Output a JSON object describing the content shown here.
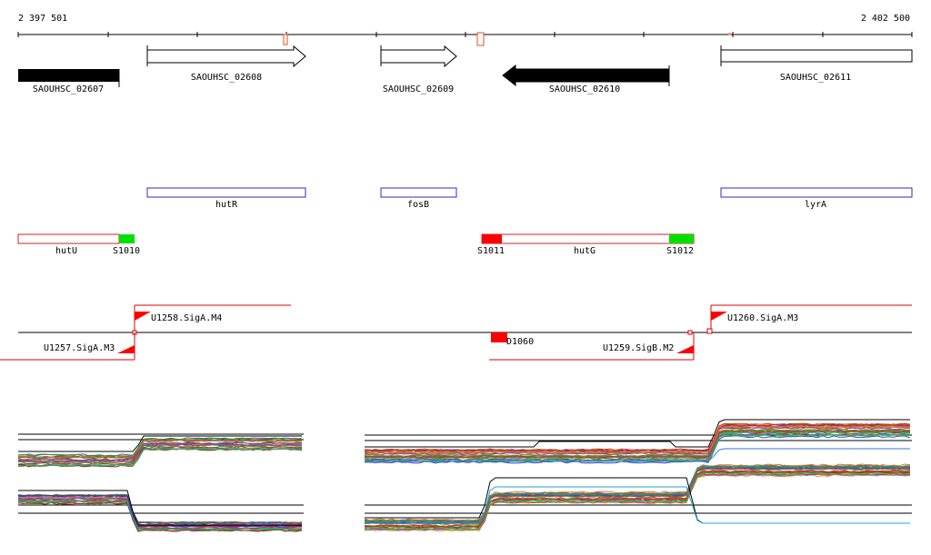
{
  "ruler": {
    "start_label": "2 397 501",
    "end_label": "2 402 500",
    "start": 2397501,
    "end": 2402500
  },
  "genes": [
    {
      "id": "SAOUHSC_02607",
      "strand": "-",
      "filled": true
    },
    {
      "id": "SAOUHSC_02608",
      "strand": "+",
      "filled": false
    },
    {
      "id": "SAOUHSC_02609",
      "strand": "+",
      "filled": false
    },
    {
      "id": "SAOUHSC_02610",
      "strand": "-",
      "filled": true
    },
    {
      "id": "SAOUHSC_02611",
      "strand": "+",
      "filled": false
    }
  ],
  "gene_names": [
    "hutR",
    "fosB",
    "lyrA"
  ],
  "transcripts": [
    {
      "name": "hutU",
      "site_label": "S1010"
    },
    {
      "name": "hutG",
      "start_label": "S1011",
      "end_label": "S1012"
    }
  ],
  "promoters": [
    "U1258.SigA.M4",
    "U1257.SigA.M3",
    "D1060",
    "U1259.SigB.M2",
    "U1260.SigA.M3"
  ],
  "colors": {
    "gene_fill": "#000000",
    "gene_name_box": "#2b2bc4",
    "transcript": "#d42020",
    "start_site": "#ff0000",
    "end_site": "#00e000",
    "promoter": "#e00000"
  }
}
